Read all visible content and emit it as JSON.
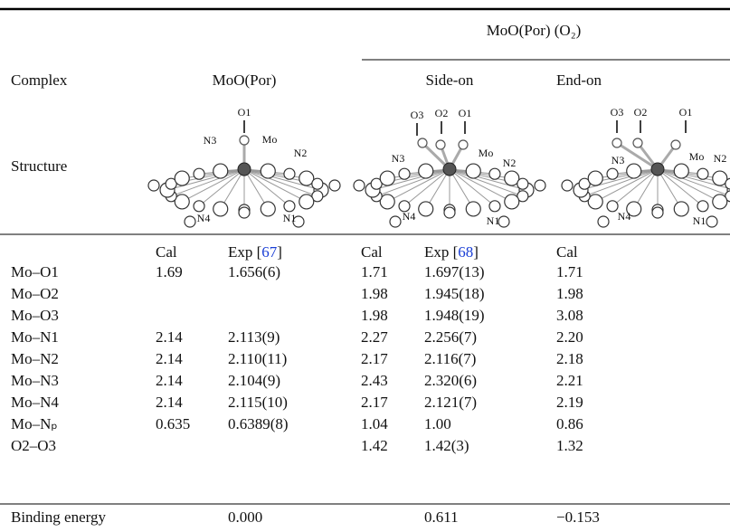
{
  "header": {
    "group_title": "MoO(Por) (O₂)",
    "complex_label": "Complex",
    "columns": [
      "MoO(Por)",
      "Side-on",
      "End-on"
    ]
  },
  "structure": {
    "label": "Structure",
    "images": [
      {
        "labels": [
          "O1",
          "Mo",
          "N3",
          "N2",
          "N4",
          "N1"
        ]
      },
      {
        "labels": [
          "O3",
          "O2",
          "O1",
          "Mo",
          "N3",
          "N2",
          "N4",
          "N1"
        ]
      },
      {
        "labels": [
          "O3",
          "O2",
          "O1",
          "Mo",
          "N3",
          "N2",
          "N4",
          "N1"
        ]
      }
    ]
  },
  "table": {
    "subheader": [
      [
        "Cal"
      ],
      [
        "Exp [",
        "67",
        "]"
      ],
      [
        "Cal"
      ],
      [
        "Exp [",
        "68",
        "]"
      ],
      [
        "Cal"
      ]
    ],
    "rows": [
      [
        "Mo–O1",
        "1.69",
        "1.656(6)",
        "1.71",
        "1.697(13)",
        "1.71"
      ],
      [
        "Mo–O2",
        null,
        null,
        "1.98",
        "1.945(18)",
        "1.98"
      ],
      [
        "Mo–O3",
        null,
        null,
        "1.98",
        "1.948(19)",
        "3.08"
      ],
      [
        "Mo–N1",
        "2.14",
        "2.113(9)",
        "2.27",
        "2.256(7)",
        "2.20"
      ],
      [
        "Mo–N2",
        "2.14",
        "2.110(11)",
        "2.17",
        "2.116(7)",
        "2.18"
      ],
      [
        "Mo–N3",
        "2.14",
        "2.104(9)",
        "2.43",
        "2.320(6)",
        "2.21"
      ],
      [
        "Mo–N4",
        "2.14",
        "2.115(10)",
        "2.17",
        "2.121(7)",
        "2.19"
      ],
      [
        "Mo–Nₚ",
        "0.635",
        "0.6389(8)",
        "1.04",
        "1.00",
        "0.86"
      ],
      [
        "O2–O3",
        null,
        null,
        "1.42",
        "1.42(3)",
        "1.32"
      ]
    ],
    "footer": [
      "Binding energy",
      "0.000",
      "0.611",
      "−0.153"
    ]
  }
}
